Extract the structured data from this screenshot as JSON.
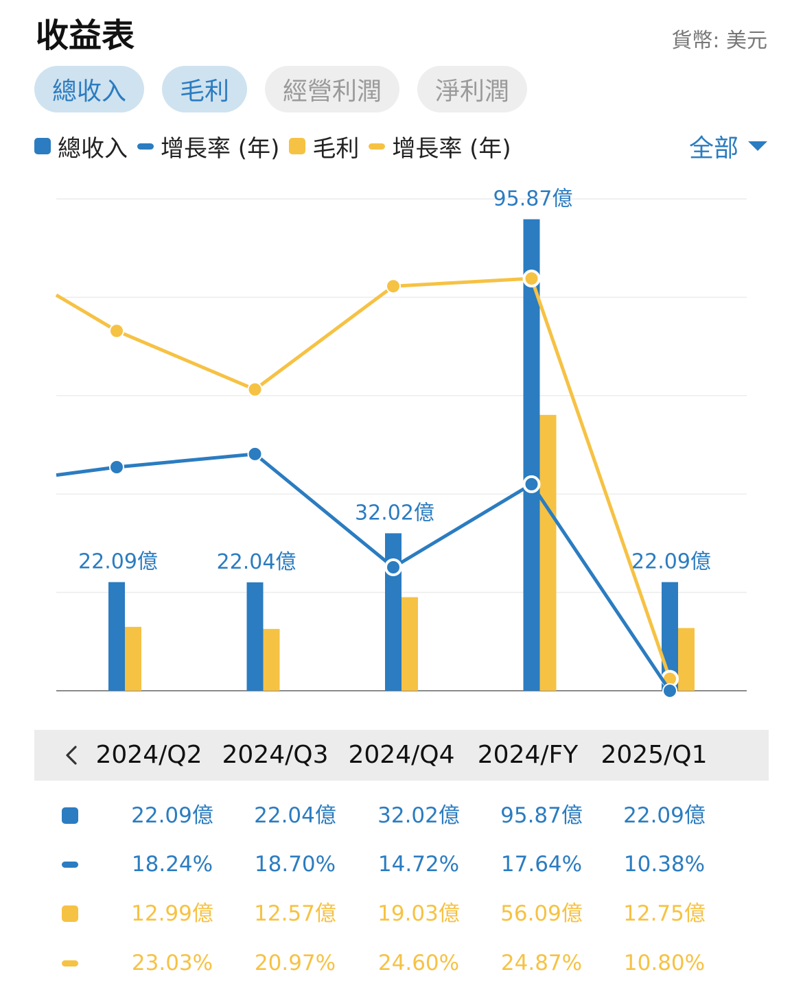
{
  "title": "收益表",
  "currency": {
    "label": "貨幣:",
    "value": "美元"
  },
  "tabs": [
    {
      "label": "總收入",
      "active": true
    },
    {
      "label": "毛利",
      "active": true
    },
    {
      "label": "經營利潤",
      "active": false
    },
    {
      "label": "淨利潤",
      "active": false
    }
  ],
  "legend": [
    {
      "label": "總收入",
      "shape": "square",
      "color": "#2b7cc0"
    },
    {
      "label": "增長率 (年)",
      "shape": "line",
      "color": "#2b7cc0"
    },
    {
      "label": "毛利",
      "shape": "square",
      "color": "#f6c244"
    },
    {
      "label": "增長率 (年)",
      "shape": "line",
      "color": "#f6c244"
    }
  ],
  "range_selector": {
    "label": "全部",
    "icon": "caret-down-icon"
  },
  "chart_data": {
    "type": "bar",
    "categories": [
      "2024/Q2",
      "2024/Q3",
      "2024/Q4",
      "2024/FY",
      "2025/Q1"
    ],
    "series": [
      {
        "name": "總收入",
        "kind": "bar",
        "color": "#2b7cc0",
        "values": [
          22.09,
          22.04,
          32.02,
          95.87,
          22.09
        ],
        "labels": [
          "22.09億",
          "22.04億",
          "32.02億",
          "95.87億",
          "22.09億"
        ]
      },
      {
        "name": "增長率 (年)",
        "kind": "line",
        "color": "#2b7cc0",
        "values": [
          18.24,
          18.7,
          14.72,
          17.64,
          10.38
        ],
        "labels": [
          "18.24%",
          "18.70%",
          "14.72%",
          "17.64%",
          "10.38%"
        ]
      },
      {
        "name": "毛利",
        "kind": "bar",
        "color": "#f6c244",
        "values": [
          12.99,
          12.57,
          19.03,
          56.09,
          12.75
        ],
        "labels": [
          "12.99億",
          "12.57億",
          "19.03億",
          "56.09億",
          "12.75億"
        ]
      },
      {
        "name": "增長率 (年)",
        "kind": "line",
        "color": "#f6c244",
        "values": [
          23.03,
          20.97,
          24.6,
          24.87,
          10.8
        ],
        "labels": [
          "23.03%",
          "20.97%",
          "24.60%",
          "24.87%",
          "10.80%"
        ]
      }
    ],
    "bar_ylim": [
      0,
      100
    ],
    "line_ylim": [
      10.38,
      26.1
    ],
    "grid": true,
    "lines_extend_past_left_edge": true
  },
  "nav": {
    "prev_icon": "chevron-left-icon"
  }
}
